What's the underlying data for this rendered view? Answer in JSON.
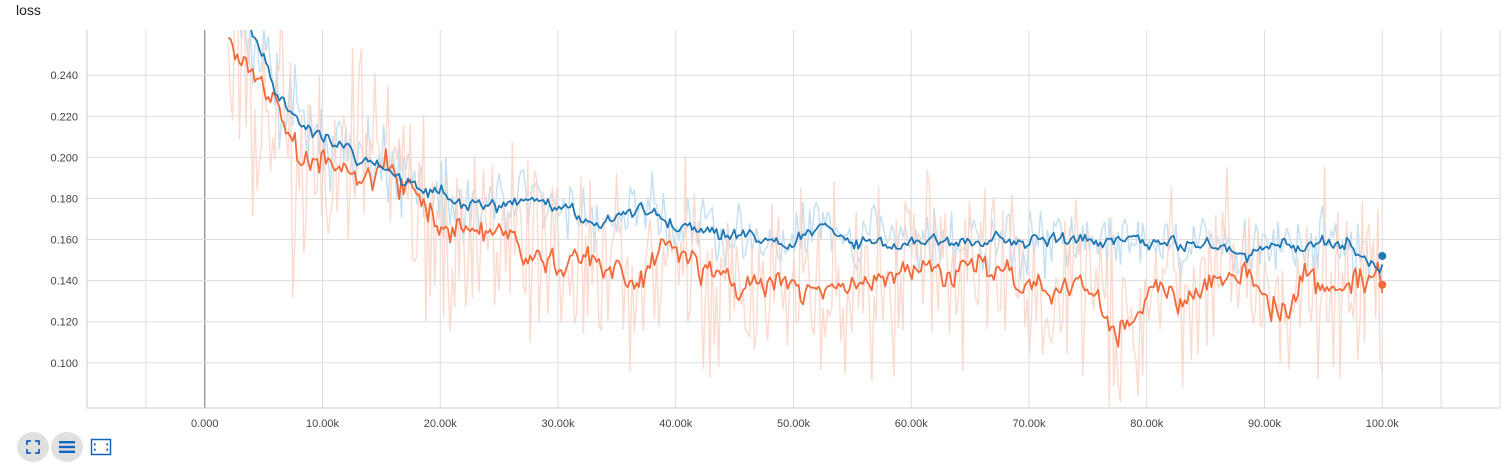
{
  "card": {
    "title": "loss"
  },
  "toolbar": {
    "buttons": [
      {
        "icon": "fullscreen-icon"
      },
      {
        "icon": "list-icon"
      },
      {
        "icon": "fit-domain-icon"
      }
    ]
  },
  "colors": {
    "blue": "#1f77b4",
    "orange": "#f26a3a",
    "orange_raw": "#fcd3c6",
    "blue_raw": "#b9d9ef",
    "grid": "#dddddd"
  },
  "chart_data": {
    "type": "line",
    "title": "loss",
    "xlabel": "",
    "ylabel": "",
    "xlim": [
      -10000,
      110000
    ],
    "ylim": [
      0.078,
      0.262
    ],
    "x_ticks": [
      0,
      10000,
      20000,
      30000,
      40000,
      50000,
      60000,
      70000,
      80000,
      90000,
      100000
    ],
    "x_tick_labels": [
      "0.000",
      "10.00k",
      "20.00k",
      "30.00k",
      "40.00k",
      "50.00k",
      "60.00k",
      "70.00k",
      "80.00k",
      "90.00k",
      "100.0k"
    ],
    "y_ticks": [
      0.1,
      0.12,
      0.14,
      0.16,
      0.18,
      0.2,
      0.22,
      0.24
    ],
    "y_tick_labels": [
      "0.100",
      "0.120",
      "0.140",
      "0.160",
      "0.180",
      "0.200",
      "0.220",
      "0.240"
    ],
    "grid": true,
    "series": [
      {
        "color": "#1f77b4",
        "x": [
          2000,
          4000,
          6000,
          8000,
          10000,
          12000,
          14000,
          16000,
          18000,
          20000,
          22000,
          25000,
          28000,
          30000,
          32000,
          35000,
          38000,
          40000,
          45000,
          50000,
          55000,
          60000,
          65000,
          70000,
          75000,
          80000,
          85000,
          90000,
          95000,
          100000
        ],
        "y": [
          0.275,
          0.258,
          0.232,
          0.214,
          0.21,
          0.2,
          0.194,
          0.189,
          0.184,
          0.181,
          0.179,
          0.178,
          0.176,
          0.175,
          0.172,
          0.17,
          0.168,
          0.166,
          0.165,
          0.163,
          0.162,
          0.162,
          0.16,
          0.158,
          0.158,
          0.157,
          0.157,
          0.157,
          0.156,
          0.152
        ]
      },
      {
        "color": "#f26a3a",
        "x": [
          2000,
          4000,
          6000,
          8000,
          10000,
          12000,
          14000,
          16000,
          18000,
          20000,
          22000,
          25000,
          28000,
          30000,
          32000,
          35000,
          38000,
          40000,
          45000,
          50000,
          55000,
          60000,
          65000,
          70000,
          75000,
          80000,
          85000,
          90000,
          95000,
          100000
        ],
        "y": [
          0.262,
          0.24,
          0.222,
          0.205,
          0.197,
          0.19,
          0.186,
          0.182,
          0.175,
          0.168,
          0.165,
          0.16,
          0.152,
          0.15,
          0.152,
          0.15,
          0.148,
          0.148,
          0.142,
          0.141,
          0.14,
          0.14,
          0.138,
          0.136,
          0.137,
          0.135,
          0.134,
          0.134,
          0.136,
          0.138
        ]
      }
    ]
  }
}
